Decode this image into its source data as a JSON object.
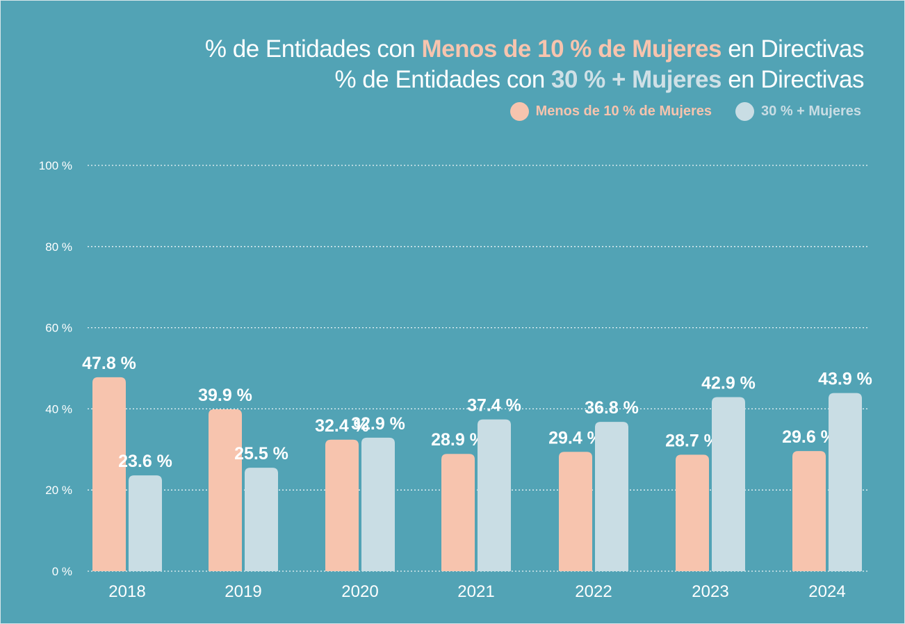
{
  "title": {
    "line1_prefix": "% de Entidades con ",
    "line1_highlight": "Menos de 10 % de Mujeres",
    "line1_suffix": " en Directivas",
    "line2_prefix": "% de Entidades con ",
    "line2_highlight": "30 % + Mujeres",
    "line2_suffix": " en Directivas"
  },
  "colors": {
    "background": "#52a3b5",
    "series_a": "#f7c4ae",
    "series_b": "#c9dde4",
    "text": "#ffffff",
    "grid": "#ffffff"
  },
  "chart_data": {
    "type": "bar",
    "categories": [
      "2018",
      "2019",
      "2020",
      "2021",
      "2022",
      "2023",
      "2024"
    ],
    "series": [
      {
        "name": "Menos de 10 % de Mujeres",
        "color": "#f7c4ae",
        "values": [
          47.8,
          39.9,
          32.4,
          28.9,
          29.4,
          28.7,
          29.6
        ],
        "labels": [
          "47.8 %",
          "39.9 %",
          "32.4 %",
          "28.9 %",
          "29.4 %",
          "28.7 %",
          "29.6 %"
        ]
      },
      {
        "name": "30 % + Mujeres",
        "color": "#c9dde4",
        "values": [
          23.6,
          25.5,
          32.9,
          37.4,
          36.8,
          42.9,
          43.9
        ],
        "labels": [
          "23.6 %",
          "25.5 %",
          "32.9 %",
          "37.4 %",
          "36.8 %",
          "42.9 %",
          "43.9 %"
        ]
      }
    ],
    "ylim": [
      0,
      100
    ],
    "yticks": [
      0,
      20,
      40,
      60,
      80,
      100
    ],
    "ytick_labels": [
      "0 %",
      "20 %",
      "40 %",
      "60 %",
      "80 %",
      "100 %"
    ],
    "grid": true,
    "grid_style": "dotted",
    "legend_position": "top-right"
  }
}
